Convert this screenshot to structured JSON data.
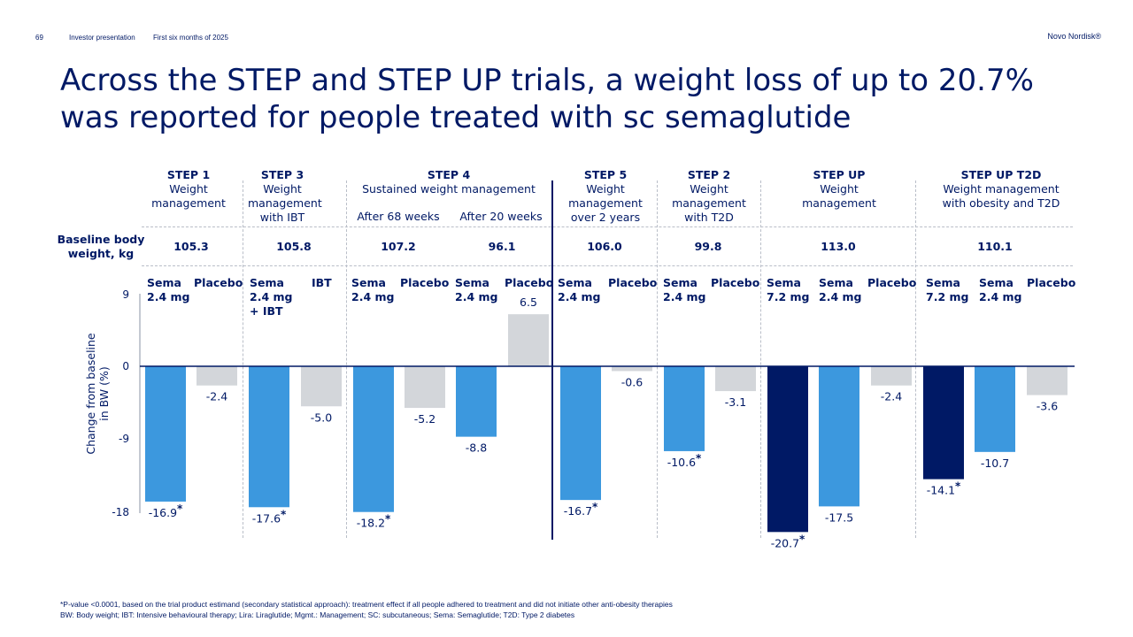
{
  "header": {
    "page_number": "69",
    "presentation": "Investor presentation",
    "period": "First six months of 2025",
    "brand": "Novo Nordisk®"
  },
  "title": "Across the STEP and STEP UP trials, a weight loss of up to 20.7% was reported for people treated with sc semaglutide",
  "groups": [
    {
      "name": "STEP 1",
      "desc": "Weight management"
    },
    {
      "name": "STEP 3",
      "desc": "Weight management with IBT"
    },
    {
      "name": "STEP 4",
      "desc": "Sustained weight management"
    },
    {
      "name": "STEP 5",
      "desc": "Weight management over 2 years"
    },
    {
      "name": "STEP 2",
      "desc": "Weight management with T2D"
    },
    {
      "name": "STEP UP",
      "desc": "Weight management"
    },
    {
      "name": "STEP UP T2D",
      "desc": "Weight management with obesity and T2D"
    }
  ],
  "step4_subheaders": [
    "After 68 weeks",
    "After 20 weeks"
  ],
  "baseline": {
    "label": "Baseline body weight, kg",
    "values": [
      "105.3",
      "105.8",
      "107.2",
      "96.1",
      "106.0",
      "99.8",
      "113.0",
      "110.1"
    ]
  },
  "treatments": [
    {
      "line1": "Sema",
      "line2": "2.4 mg"
    },
    {
      "line1": "Placebo",
      "line2": ""
    },
    {
      "line1": "Sema",
      "line2": "2.4 mg",
      "line3": "+ IBT"
    },
    {
      "line1": "IBT",
      "line2": ""
    },
    {
      "line1": "Sema",
      "line2": "2.4 mg"
    },
    {
      "line1": "Placebo",
      "line2": ""
    },
    {
      "line1": "Sema",
      "line2": "2.4 mg"
    },
    {
      "line1": "Placebo",
      "line2": ""
    },
    {
      "line1": "Sema",
      "line2": "2.4 mg"
    },
    {
      "line1": "Placebo",
      "line2": ""
    },
    {
      "line1": "Sema",
      "line2": "2.4 mg"
    },
    {
      "line1": "Placebo",
      "line2": ""
    },
    {
      "line1": "Sema",
      "line2": "7.2 mg"
    },
    {
      "line1": "Sema",
      "line2": "2.4 mg"
    },
    {
      "line1": "Placebo",
      "line2": ""
    },
    {
      "line1": "Sema",
      "line2": "7.2 mg"
    },
    {
      "line1": "Sema",
      "line2": "2.4 mg"
    },
    {
      "line1": "Placebo",
      "line2": ""
    }
  ],
  "chart_data": {
    "type": "bar",
    "ylabel": "Change from baseline in BW (%)",
    "ylim": [
      -18,
      9
    ],
    "yticks": [
      "9",
      "0",
      "-9",
      "-18"
    ],
    "categories": [
      "STEP 1 Sema 2.4 mg",
      "STEP 1 Placebo",
      "STEP 3 Sema 2.4 mg + IBT",
      "STEP 3 IBT",
      "STEP 4 68w Sema 2.4 mg",
      "STEP 4 68w Placebo",
      "STEP 4 20w Sema 2.4 mg",
      "STEP 4 20w Placebo",
      "STEP 5 Sema 2.4 mg",
      "STEP 5 Placebo",
      "STEP 2 Sema 2.4 mg",
      "STEP 2 Placebo",
      "STEP UP Sema 7.2 mg",
      "STEP UP Sema 2.4 mg",
      "STEP UP Placebo",
      "STEP UP T2D Sema 7.2 mg",
      "STEP UP T2D Sema 2.4 mg",
      "STEP UP T2D Placebo"
    ],
    "values": [
      -16.9,
      -2.4,
      -17.6,
      -5.0,
      -18.2,
      -5.2,
      -8.8,
      6.5,
      -16.7,
      -0.6,
      -10.6,
      -3.1,
      -20.7,
      -17.5,
      -2.4,
      -14.1,
      -10.7,
      -3.6
    ],
    "labels": [
      "-16.9",
      "-2.4",
      "-17.6",
      "-5.0",
      "-18.2",
      "-5.2",
      "-8.8",
      "6.5",
      "-16.7",
      "-0.6",
      "-10.6",
      "-3.1",
      "-20.7",
      "-17.5",
      "-2.4",
      "-14.1",
      "-10.7",
      "-3.6"
    ],
    "significant": [
      true,
      false,
      true,
      false,
      true,
      false,
      false,
      false,
      true,
      false,
      true,
      false,
      true,
      false,
      false,
      true,
      false,
      false
    ],
    "kinds": [
      "sema",
      "placebo",
      "sema",
      "placebo",
      "sema",
      "placebo",
      "sema",
      "placebo",
      "sema",
      "placebo",
      "sema",
      "placebo",
      "high",
      "sema",
      "placebo",
      "high",
      "sema",
      "placebo"
    ],
    "colors": {
      "sema": "#3c98de",
      "high": "#001965",
      "placebo": "#d3d6da",
      "axis": "#001965",
      "text": "#001965"
    }
  },
  "footnotes": [
    "*P-value <0.0001, based on the trial product estimand (secondary statistical approach): treatment effect if all people adhered to treatment and did not initiate other anti-obesity therapies",
    "BW: Body weight; IBT: Intensive behavioural therapy; Lira: Liraglutide; Mgmt.: Management; SC: subcutaneous; Sema: Semaglutide; T2D: Type 2 diabetes"
  ]
}
